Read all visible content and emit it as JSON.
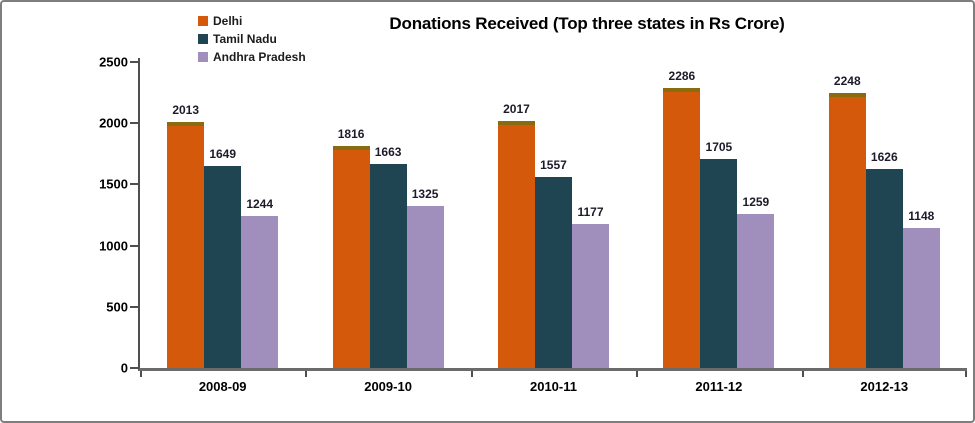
{
  "window": {
    "background": "#ffffff",
    "frame_border_color": "#7e7e7e",
    "axis_color": "#4f4f4f"
  },
  "chart_data": {
    "type": "bar",
    "title": "Donations Received (Top three states in Rs Crore)",
    "categories": [
      "2008-09",
      "2009-10",
      "2010-11",
      "2011-12",
      "2012-13"
    ],
    "series": [
      {
        "name": "Delhi",
        "color": "#D4590B",
        "top_edge": "#8A6C10",
        "values": [
          2013,
          1816,
          2017,
          2286,
          2248
        ]
      },
      {
        "name": "Tamil Nadu",
        "color": "#1F4553",
        "values": [
          1649,
          1663,
          1557,
          1705,
          1626
        ]
      },
      {
        "name": "Andhra Pradesh",
        "color": "#A08FBC",
        "values": [
          1244,
          1325,
          1177,
          1259,
          1148
        ]
      }
    ],
    "ylim": [
      0,
      2500
    ],
    "yticks": [
      0,
      500,
      1000,
      1500,
      2000,
      2500
    ],
    "data_labels": true,
    "grid": false,
    "legend_position": "top-left",
    "xlabel": "",
    "ylabel": ""
  }
}
